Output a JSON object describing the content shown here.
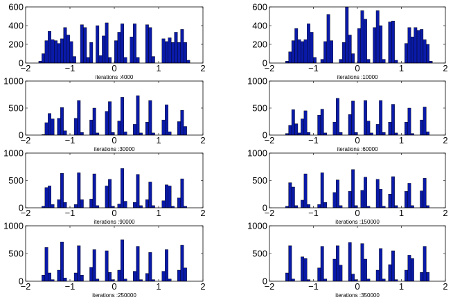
{
  "bar_color": "#0a1aa8",
  "edge_color": "#000000",
  "chart_data": [
    {
      "type": "bar",
      "title": "",
      "xlabel": "iterations :4000",
      "ylabel": "",
      "xlim": [
        -2,
        2
      ],
      "ylim": [
        0,
        600
      ],
      "bin_width": 0.07,
      "xticks": [
        -2,
        -1,
        0,
        1,
        2
      ],
      "xtick_labels": [
        "−2",
        "−1",
        "0",
        "1",
        "2"
      ],
      "yticks": [
        0,
        200,
        400,
        600
      ],
      "ytick_labels": [
        "0",
        "200",
        "400",
        "600"
      ],
      "bins": [
        [
          -1.67,
          20
        ],
        [
          -1.6,
          100
        ],
        [
          -1.53,
          240
        ],
        [
          -1.46,
          340
        ],
        [
          -1.39,
          250
        ],
        [
          -1.32,
          240
        ],
        [
          -1.25,
          210
        ],
        [
          -1.18,
          260
        ],
        [
          -1.11,
          380
        ],
        [
          -1.04,
          300
        ],
        [
          -0.97,
          230
        ],
        [
          -0.9,
          70
        ],
        [
          -0.73,
          410
        ],
        [
          -0.66,
          380
        ],
        [
          -0.59,
          60
        ],
        [
          -0.52,
          220
        ],
        [
          -0.38,
          400
        ],
        [
          -0.31,
          80
        ],
        [
          -0.24,
          290
        ],
        [
          -0.17,
          430
        ],
        [
          -0.1,
          60
        ],
        [
          0.04,
          240
        ],
        [
          0.11,
          330
        ],
        [
          0.18,
          420
        ],
        [
          0.25,
          60
        ],
        [
          0.39,
          280
        ],
        [
          0.46,
          420
        ],
        [
          0.53,
          60
        ],
        [
          0.74,
          410
        ],
        [
          0.81,
          380
        ],
        [
          0.88,
          70
        ],
        [
          1.11,
          260
        ],
        [
          1.18,
          230
        ],
        [
          1.25,
          270
        ],
        [
          1.32,
          220
        ],
        [
          1.39,
          330
        ],
        [
          1.46,
          220
        ],
        [
          1.53,
          360
        ],
        [
          1.6,
          220
        ],
        [
          1.67,
          30
        ]
      ]
    },
    {
      "type": "bar",
      "title": "",
      "xlabel": "iterations :10000",
      "ylabel": "",
      "xlim": [
        -2,
        2
      ],
      "ylim": [
        0,
        600
      ],
      "bin_width": 0.07,
      "xticks": [
        -2,
        -1,
        0,
        1,
        2
      ],
      "xtick_labels": [
        "−2",
        "−1",
        "0",
        "1",
        "2"
      ],
      "yticks": [
        0,
        200,
        400,
        600
      ],
      "ytick_labels": [
        "0",
        "200",
        "400",
        "600"
      ],
      "bins": [
        [
          -1.6,
          20
        ],
        [
          -1.53,
          120
        ],
        [
          -1.46,
          240
        ],
        [
          -1.39,
          370
        ],
        [
          -1.32,
          250
        ],
        [
          -1.25,
          230
        ],
        [
          -1.18,
          250
        ],
        [
          -1.11,
          420
        ],
        [
          -1.04,
          330
        ],
        [
          -0.97,
          60
        ],
        [
          -0.8,
          40
        ],
        [
          -0.73,
          230
        ],
        [
          -0.66,
          520
        ],
        [
          -0.59,
          240
        ],
        [
          -0.38,
          40
        ],
        [
          -0.31,
          220
        ],
        [
          -0.24,
          610
        ],
        [
          -0.17,
          300
        ],
        [
          -0.1,
          100
        ],
        [
          0.04,
          370
        ],
        [
          0.11,
          560
        ],
        [
          0.18,
          470
        ],
        [
          0.25,
          40
        ],
        [
          0.39,
          380
        ],
        [
          0.46,
          560
        ],
        [
          0.53,
          400
        ],
        [
          0.6,
          40
        ],
        [
          0.74,
          440
        ],
        [
          0.81,
          450
        ],
        [
          0.88,
          30
        ],
        [
          1.11,
          210
        ],
        [
          1.18,
          380
        ],
        [
          1.25,
          280
        ],
        [
          1.32,
          380
        ],
        [
          1.39,
          350
        ],
        [
          1.46,
          360
        ],
        [
          1.53,
          250
        ],
        [
          1.6,
          200
        ],
        [
          1.67,
          20
        ]
      ]
    },
    {
      "type": "bar",
      "title": "",
      "xlabel": "iterations :30000",
      "ylabel": "",
      "xlim": [
        -2,
        2
      ],
      "ylim": [
        0,
        1000
      ],
      "bin_width": 0.07,
      "xticks": [
        -2,
        -1,
        0,
        1,
        2
      ],
      "xtick_labels": [
        "−2",
        "−1",
        "0",
        "1",
        "2"
      ],
      "yticks": [
        0,
        500,
        1000
      ],
      "ytick_labels": [
        "0",
        "500",
        "1000"
      ],
      "bins": [
        [
          -1.6,
          10
        ],
        [
          -1.53,
          230
        ],
        [
          -1.46,
          400
        ],
        [
          -1.39,
          300
        ],
        [
          -1.25,
          310
        ],
        [
          -1.18,
          510
        ],
        [
          -1.11,
          80
        ],
        [
          -0.87,
          310
        ],
        [
          -0.8,
          640
        ],
        [
          -0.73,
          50
        ],
        [
          -0.52,
          280
        ],
        [
          -0.45,
          500
        ],
        [
          -0.38,
          40
        ],
        [
          -0.17,
          440
        ],
        [
          -0.1,
          620
        ],
        [
          -0.03,
          50
        ],
        [
          0.11,
          260
        ],
        [
          0.18,
          700
        ],
        [
          0.25,
          60
        ],
        [
          0.46,
          200
        ],
        [
          0.53,
          730
        ],
        [
          0.6,
          40
        ],
        [
          0.74,
          240
        ],
        [
          0.81,
          640
        ],
        [
          0.88,
          40
        ],
        [
          1.11,
          280
        ],
        [
          1.18,
          560
        ],
        [
          1.25,
          60
        ],
        [
          1.46,
          250
        ],
        [
          1.53,
          460
        ],
        [
          1.6,
          160
        ]
      ]
    },
    {
      "type": "bar",
      "title": "",
      "xlabel": "iterations :60000",
      "ylabel": "",
      "xlim": [
        -2,
        2
      ],
      "ylim": [
        0,
        1000
      ],
      "bin_width": 0.07,
      "xticks": [
        -2,
        -1,
        0,
        1,
        2
      ],
      "xtick_labels": [
        "−2",
        "−1",
        "0",
        "1",
        "2"
      ],
      "yticks": [
        0,
        500,
        1000
      ],
      "ytick_labels": [
        "0",
        "500",
        "1000"
      ],
      "bins": [
        [
          -1.6,
          30
        ],
        [
          -1.53,
          180
        ],
        [
          -1.46,
          470
        ],
        [
          -1.39,
          210
        ],
        [
          -1.32,
          40
        ],
        [
          -1.25,
          300
        ],
        [
          -1.18,
          450
        ],
        [
          -1.11,
          50
        ],
        [
          -0.87,
          370
        ],
        [
          -0.8,
          480
        ],
        [
          -0.73,
          40
        ],
        [
          -0.52,
          240
        ],
        [
          -0.45,
          680
        ],
        [
          -0.38,
          50
        ],
        [
          -0.17,
          380
        ],
        [
          -0.1,
          630
        ],
        [
          -0.03,
          50
        ],
        [
          0.18,
          640
        ],
        [
          0.25,
          260
        ],
        [
          0.32,
          40
        ],
        [
          0.46,
          200
        ],
        [
          0.53,
          640
        ],
        [
          0.6,
          50
        ],
        [
          0.74,
          240
        ],
        [
          0.81,
          570
        ],
        [
          0.88,
          40
        ],
        [
          1.11,
          240
        ],
        [
          1.18,
          500
        ],
        [
          1.25,
          30
        ],
        [
          1.46,
          280
        ],
        [
          1.53,
          520
        ],
        [
          1.6,
          60
        ]
      ]
    },
    {
      "type": "bar",
      "title": "",
      "xlabel": "iterations :90000",
      "ylabel": "",
      "xlim": [
        -2,
        2
      ],
      "ylim": [
        0,
        1000
      ],
      "bin_width": 0.07,
      "xticks": [
        -2,
        -1,
        0,
        1,
        2
      ],
      "xtick_labels": [
        "−2",
        "−1",
        "0",
        "1",
        "2"
      ],
      "yticks": [
        0,
        500,
        1000
      ],
      "ytick_labels": [
        "0",
        "500",
        "1000"
      ],
      "bins": [
        [
          -1.6,
          30
        ],
        [
          -1.53,
          370
        ],
        [
          -1.46,
          400
        ],
        [
          -1.39,
          60
        ],
        [
          -1.25,
          150
        ],
        [
          -1.18,
          630
        ],
        [
          -1.11,
          100
        ],
        [
          -0.87,
          60
        ],
        [
          -0.8,
          640
        ],
        [
          -0.73,
          150
        ],
        [
          -0.52,
          160
        ],
        [
          -0.45,
          620
        ],
        [
          -0.38,
          40
        ],
        [
          -0.17,
          400
        ],
        [
          -0.1,
          520
        ],
        [
          -0.03,
          30
        ],
        [
          0.11,
          70
        ],
        [
          0.18,
          720
        ],
        [
          0.25,
          120
        ],
        [
          0.46,
          100
        ],
        [
          0.53,
          610
        ],
        [
          0.6,
          40
        ],
        [
          0.74,
          150
        ],
        [
          0.81,
          470
        ],
        [
          0.88,
          40
        ],
        [
          1.11,
          130
        ],
        [
          1.18,
          420
        ],
        [
          1.25,
          400
        ],
        [
          1.32,
          30
        ],
        [
          1.46,
          180
        ],
        [
          1.53,
          530
        ],
        [
          1.6,
          30
        ]
      ]
    },
    {
      "type": "bar",
      "title": "",
      "xlabel": "iterations :150000",
      "ylabel": "",
      "xlim": [
        -2,
        2
      ],
      "ylim": [
        0,
        1000
      ],
      "bin_width": 0.07,
      "xticks": [
        -2,
        -1,
        0,
        1,
        2
      ],
      "xtick_labels": [
        "−2",
        "−1",
        "0",
        "1",
        "2"
      ],
      "yticks": [
        0,
        500,
        1000
      ],
      "ytick_labels": [
        "0",
        "500",
        "1000"
      ],
      "bins": [
        [
          -1.6,
          30
        ],
        [
          -1.53,
          460
        ],
        [
          -1.46,
          380
        ],
        [
          -1.39,
          40
        ],
        [
          -1.25,
          140
        ],
        [
          -1.18,
          620
        ],
        [
          -1.11,
          60
        ],
        [
          -0.87,
          60
        ],
        [
          -0.8,
          640
        ],
        [
          -0.73,
          100
        ],
        [
          -0.52,
          280
        ],
        [
          -0.45,
          510
        ],
        [
          -0.38,
          40
        ],
        [
          -0.17,
          300
        ],
        [
          -0.1,
          700
        ],
        [
          -0.03,
          40
        ],
        [
          0.11,
          320
        ],
        [
          0.18,
          560
        ],
        [
          0.25,
          30
        ],
        [
          0.46,
          520
        ],
        [
          0.53,
          340
        ],
        [
          0.6,
          30
        ],
        [
          0.74,
          250
        ],
        [
          0.81,
          570
        ],
        [
          0.88,
          40
        ],
        [
          1.11,
          300
        ],
        [
          1.18,
          450
        ],
        [
          1.25,
          40
        ],
        [
          1.46,
          310
        ],
        [
          1.53,
          540
        ],
        [
          1.6,
          40
        ]
      ]
    },
    {
      "type": "bar",
      "title": "",
      "xlabel": "iterations :250000",
      "ylabel": "",
      "xlim": [
        -2,
        2
      ],
      "ylim": [
        0,
        1000
      ],
      "bin_width": 0.07,
      "xticks": [
        -2,
        -1,
        0,
        1,
        2
      ],
      "xtick_labels": [
        "−2",
        "−1",
        "0",
        "1",
        "2"
      ],
      "yticks": [
        0,
        500,
        1000
      ],
      "ytick_labels": [
        "0",
        "500",
        "1000"
      ],
      "bins": [
        [
          -1.6,
          110
        ],
        [
          -1.53,
          610
        ],
        [
          -1.46,
          150
        ],
        [
          -1.39,
          30
        ],
        [
          -1.25,
          200
        ],
        [
          -1.18,
          710
        ],
        [
          -1.11,
          60
        ],
        [
          -0.87,
          150
        ],
        [
          -0.8,
          640
        ],
        [
          -0.73,
          110
        ],
        [
          -0.52,
          250
        ],
        [
          -0.45,
          570
        ],
        [
          -0.38,
          40
        ],
        [
          -0.17,
          550
        ],
        [
          -0.1,
          160
        ],
        [
          -0.03,
          30
        ],
        [
          0.11,
          200
        ],
        [
          0.18,
          750
        ],
        [
          0.25,
          40
        ],
        [
          0.46,
          180
        ],
        [
          0.53,
          630
        ],
        [
          0.6,
          30
        ],
        [
          0.74,
          140
        ],
        [
          0.81,
          520
        ],
        [
          0.88,
          30
        ],
        [
          1.11,
          180
        ],
        [
          1.18,
          570
        ],
        [
          1.25,
          40
        ],
        [
          1.46,
          200
        ],
        [
          1.53,
          650
        ],
        [
          1.6,
          240
        ]
      ]
    },
    {
      "type": "bar",
      "title": "",
      "xlabel": "iterations :350000",
      "ylabel": "",
      "xlim": [
        -2,
        2
      ],
      "ylim": [
        0,
        1000
      ],
      "bin_width": 0.07,
      "xticks": [
        -2,
        -1,
        0,
        1,
        2
      ],
      "xtick_labels": [
        "−2",
        "−1",
        "0",
        "1",
        "2"
      ],
      "yticks": [
        0,
        500,
        1000
      ],
      "ytick_labels": [
        "0",
        "500",
        "1000"
      ],
      "bins": [
        [
          -1.6,
          150
        ],
        [
          -1.53,
          640
        ],
        [
          -1.46,
          40
        ],
        [
          -1.25,
          440
        ],
        [
          -1.18,
          410
        ],
        [
          -1.11,
          30
        ],
        [
          -0.87,
          240
        ],
        [
          -0.8,
          630
        ],
        [
          -0.73,
          40
        ],
        [
          -0.52,
          400
        ],
        [
          -0.45,
          640
        ],
        [
          -0.38,
          290
        ],
        [
          -0.17,
          700
        ],
        [
          -0.1,
          130
        ],
        [
          -0.03,
          30
        ],
        [
          0.11,
          680
        ],
        [
          0.18,
          400
        ],
        [
          0.25,
          40
        ],
        [
          0.46,
          200
        ],
        [
          0.53,
          590
        ],
        [
          0.6,
          40
        ],
        [
          0.74,
          300
        ],
        [
          0.81,
          550
        ],
        [
          0.88,
          30
        ],
        [
          1.11,
          200
        ],
        [
          1.18,
          470
        ],
        [
          1.25,
          410
        ],
        [
          1.46,
          160
        ],
        [
          1.53,
          630
        ],
        [
          1.6,
          160
        ]
      ]
    }
  ]
}
